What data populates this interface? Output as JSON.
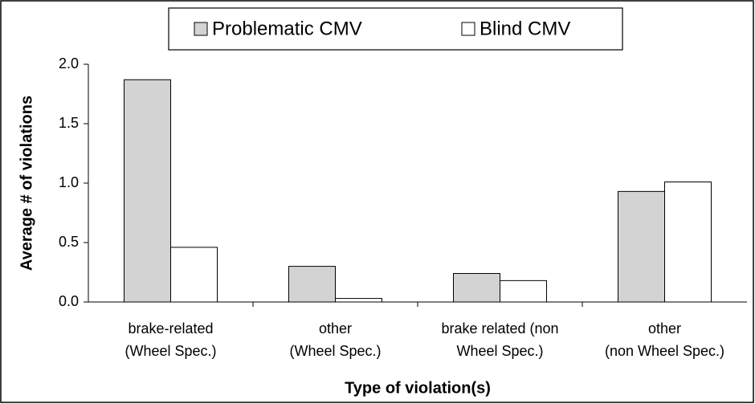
{
  "chart_data": {
    "type": "bar",
    "x_label": "Type of violation(s)",
    "y_label": "Average # of violations",
    "categories": [
      [
        "brake-related",
        "(Wheel Spec.)"
      ],
      [
        "other",
        "(Wheel Spec.)"
      ],
      [
        "brake related  (non",
        "Wheel Spec.)"
      ],
      [
        "other",
        "(non Wheel Spec.)"
      ]
    ],
    "series": [
      {
        "name": "Problematic CMV",
        "color": "#d3d3d3",
        "values": [
          1.87,
          0.3,
          0.24,
          0.93
        ]
      },
      {
        "name": "Blind CMV",
        "color": "#ffffff",
        "values": [
          0.46,
          0.03,
          0.18,
          1.01
        ]
      }
    ],
    "ylim": [
      0,
      2
    ],
    "yticks": [
      {
        "value": 0,
        "label": "0.0"
      },
      {
        "value": 0.5,
        "label": "0.5"
      },
      {
        "value": 1,
        "label": "1.0"
      },
      {
        "value": 1.5,
        "label": "1.5"
      },
      {
        "value": 2,
        "label": "2.0"
      }
    ],
    "legend": "top"
  }
}
